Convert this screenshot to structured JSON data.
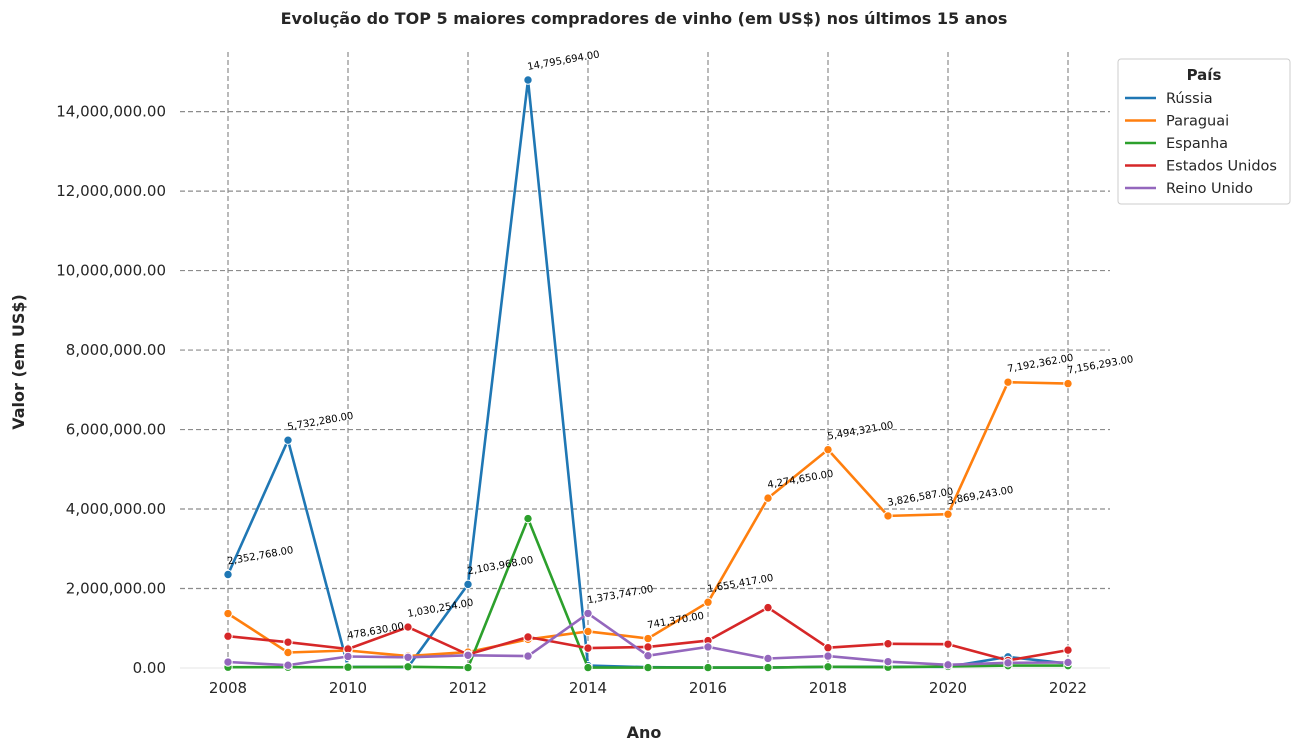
{
  "chart_data": {
    "type": "line",
    "title": "Evolução do TOP 5 maiores compradores de vinho (em US$) nos últimos 15 anos",
    "xlabel": "Ano",
    "ylabel": "Valor (em US$)",
    "xlim": [
      2007.2,
      2022.7
    ],
    "ylim": [
      0,
      15500000
    ],
    "x_ticks": [
      2008,
      2010,
      2012,
      2014,
      2016,
      2018,
      2020,
      2022
    ],
    "y_ticks": [
      0,
      2000000,
      4000000,
      6000000,
      8000000,
      10000000,
      12000000,
      14000000
    ],
    "y_tick_labels": [
      "0.00",
      "2,000,000.00",
      "4,000,000.00",
      "6,000,000.00",
      "8,000,000.00",
      "10,000,000.00",
      "12,000,000.00",
      "14,000,000.00"
    ],
    "grid": true,
    "legend_title": "País",
    "legend_position": "top-right outside",
    "x": [
      2008,
      2009,
      2010,
      2011,
      2012,
      2013,
      2014,
      2015,
      2016,
      2017,
      2018,
      2019,
      2020,
      2021,
      2022
    ],
    "series": [
      {
        "name": "Rússia",
        "color": "#1f77b4",
        "values": [
          2352768,
          5732280,
          30000,
          20000,
          2103968,
          14795694,
          60000,
          20000,
          10000,
          10000,
          30000,
          30000,
          30000,
          280000,
          110000
        ]
      },
      {
        "name": "Paraguai",
        "color": "#ff7f0e",
        "values": [
          1370000,
          390000,
          440000,
          300000,
          400000,
          720000,
          920000,
          741370,
          1655417,
          4274650,
          5494321,
          3826587,
          3869243,
          7192362,
          7156293
        ]
      },
      {
        "name": "Espanha",
        "color": "#2ca02c",
        "values": [
          20000,
          20000,
          20000,
          30000,
          10000,
          3760000,
          10000,
          10000,
          10000,
          10000,
          30000,
          20000,
          40000,
          60000,
          60000
        ]
      },
      {
        "name": "Estados Unidos",
        "color": "#d62728",
        "values": [
          800000,
          650000,
          478630,
          1030254,
          340000,
          780000,
          500000,
          530000,
          690000,
          1520000,
          510000,
          610000,
          600000,
          190000,
          450000
        ]
      },
      {
        "name": "Reino Unido",
        "color": "#9467bd",
        "values": [
          150000,
          70000,
          290000,
          270000,
          320000,
          300000,
          1373747,
          310000,
          530000,
          240000,
          300000,
          160000,
          80000,
          130000,
          140000
        ]
      }
    ],
    "annotations": [
      {
        "x": 2008,
        "y": 2352768,
        "text": "2,352,768.00"
      },
      {
        "x": 2009,
        "y": 5732280,
        "text": "5,732,280.00"
      },
      {
        "x": 2010,
        "y": 478630,
        "text": "478,630.00"
      },
      {
        "x": 2011,
        "y": 1030254,
        "text": "1,030,254.00"
      },
      {
        "x": 2012,
        "y": 2103968,
        "text": "2,103,968.00"
      },
      {
        "x": 2013,
        "y": 14795694,
        "text": "14,795,694.00"
      },
      {
        "x": 2014,
        "y": 1373747,
        "text": "1,373,747.00"
      },
      {
        "x": 2015,
        "y": 741370,
        "text": "741,370.00"
      },
      {
        "x": 2016,
        "y": 1655417,
        "text": "1,655,417.00"
      },
      {
        "x": 2017,
        "y": 4274650,
        "text": "4,274,650.00"
      },
      {
        "x": 2018,
        "y": 5494321,
        "text": "5,494,321.00"
      },
      {
        "x": 2019,
        "y": 3826587,
        "text": "3,826,587.00"
      },
      {
        "x": 2020,
        "y": 3869243,
        "text": "3,869,243.00"
      },
      {
        "x": 2021,
        "y": 7192362,
        "text": "7,192,362.00"
      },
      {
        "x": 2022,
        "y": 7156293,
        "text": "7,156,293.00"
      }
    ]
  }
}
